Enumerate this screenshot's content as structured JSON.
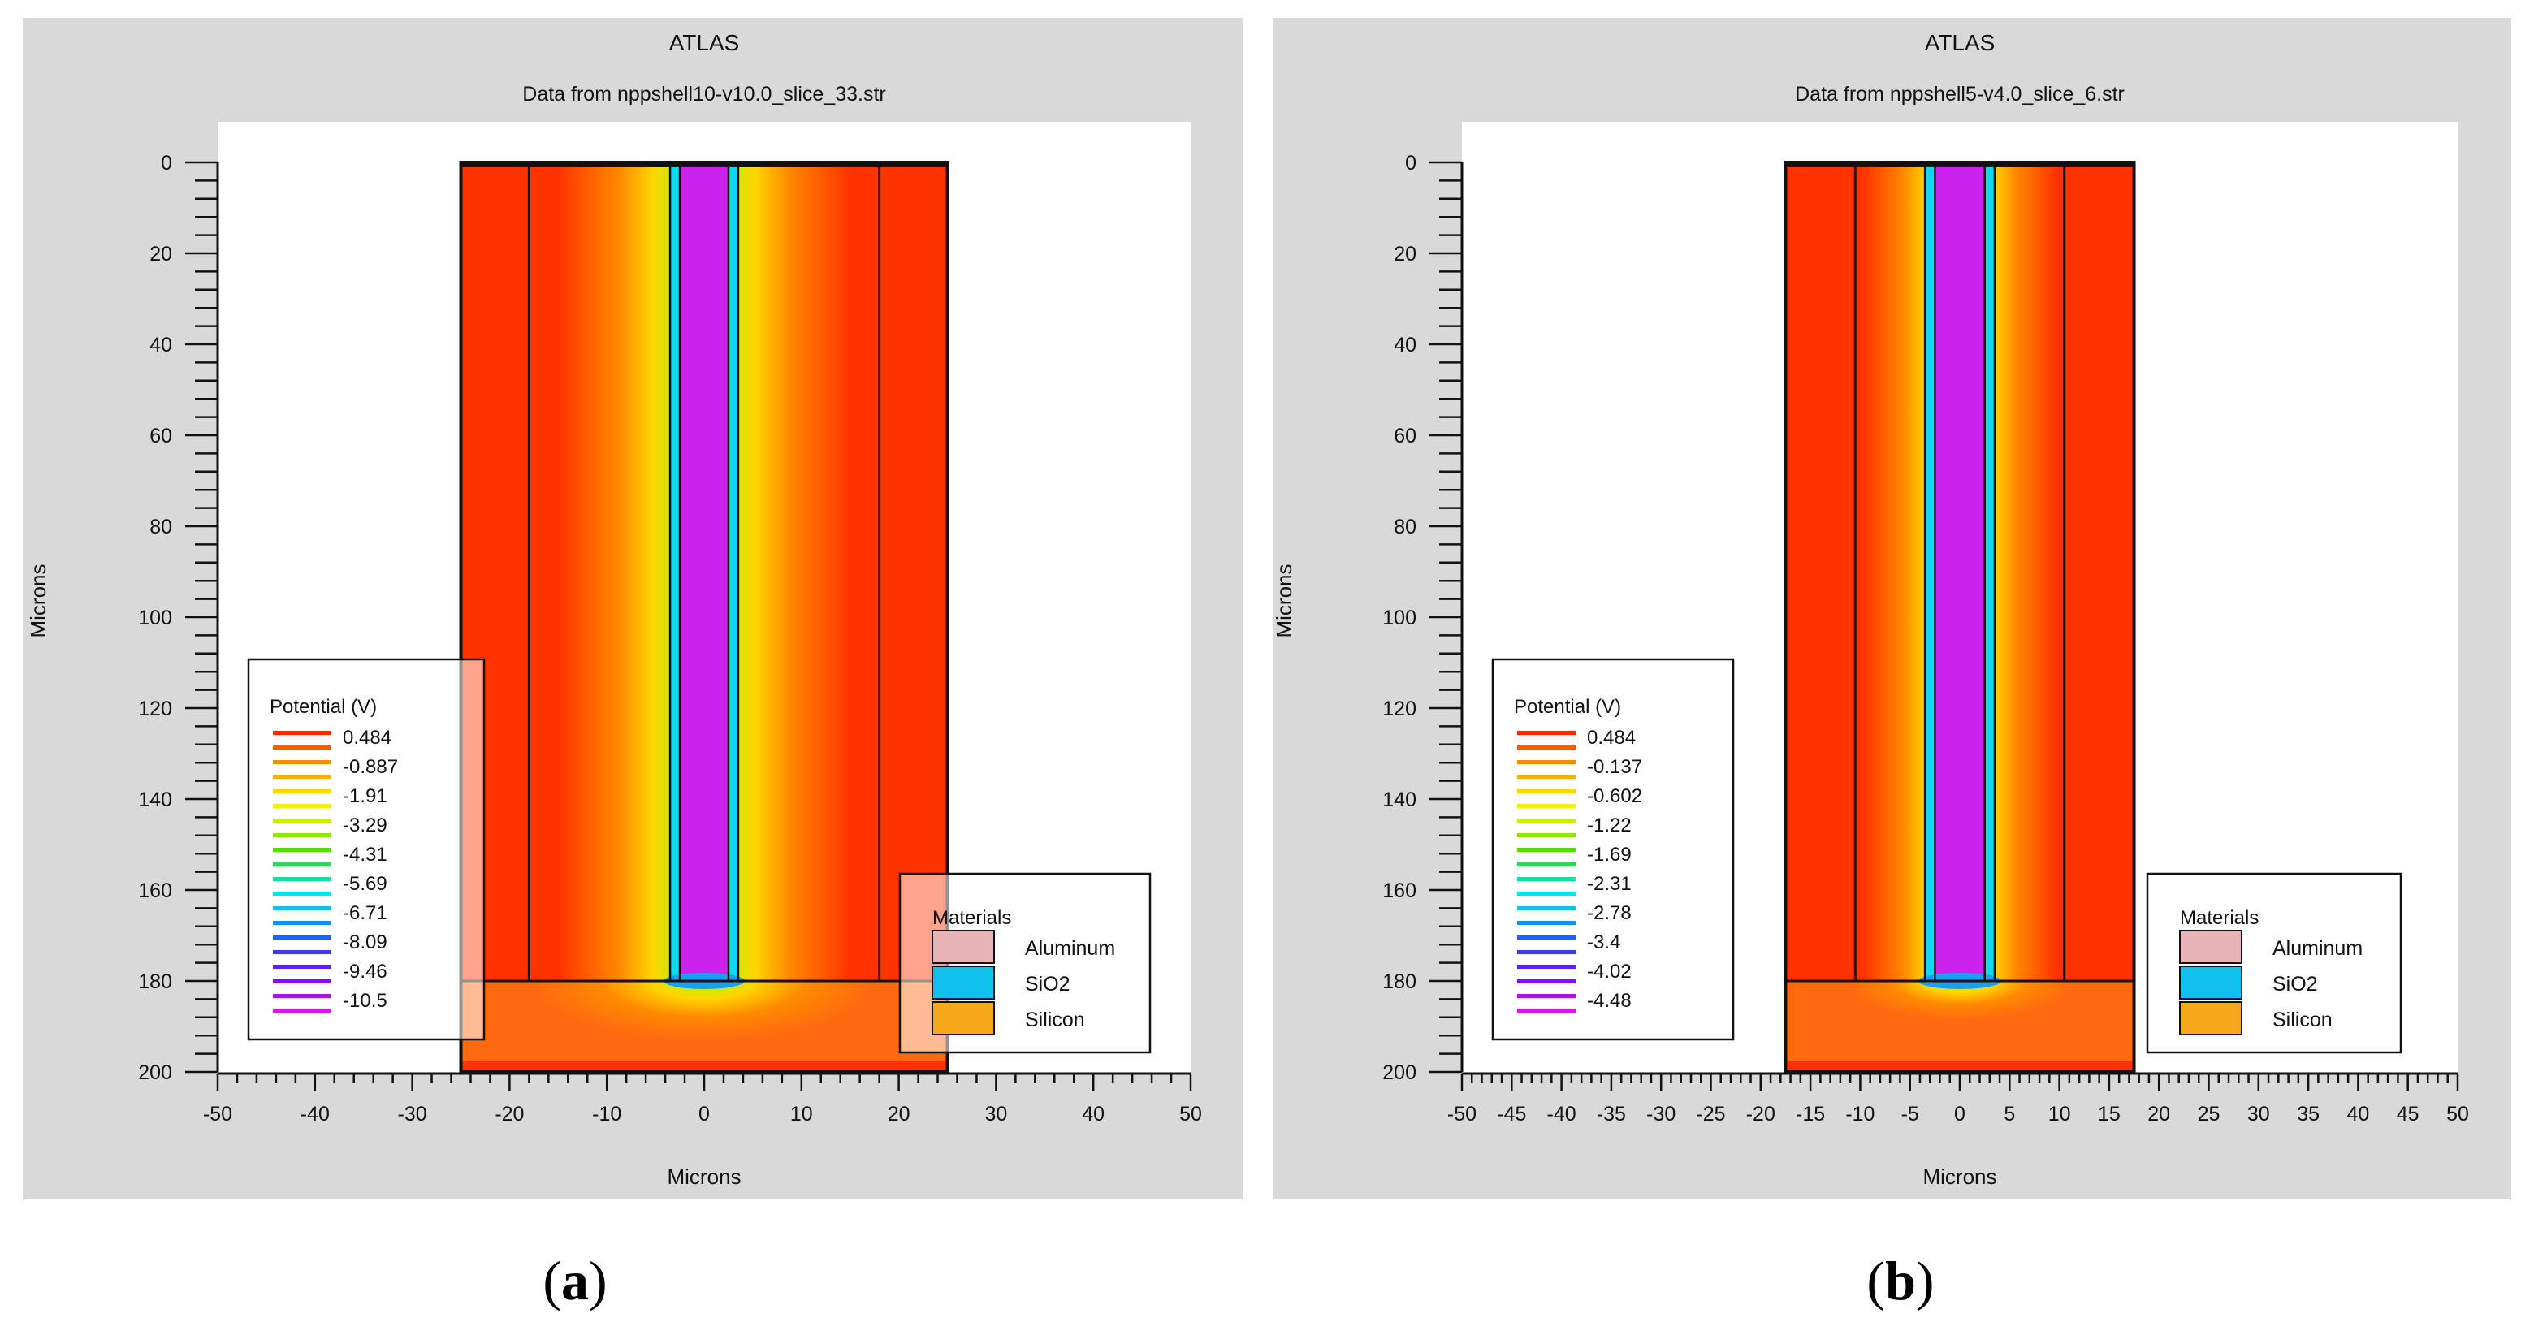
{
  "chart_data": [
    {
      "type": "heatmap",
      "id": "a",
      "title": "ATLAS",
      "subtitle": "Data from nppshell10-v10.0_slice_33.str",
      "xlabel": "Microns",
      "ylabel": "Microns",
      "xlim": [
        -50,
        50
      ],
      "ylim": [
        0,
        200
      ],
      "y_inverted": true,
      "x_ticks": [
        -50,
        -40,
        -30,
        -20,
        -10,
        0,
        10,
        20,
        30,
        40,
        50
      ],
      "x_tick_labels": [
        "-50",
        "-40",
        "-30",
        "-20",
        "-10",
        "0",
        "10",
        "20",
        "30",
        "40",
        "50"
      ],
      "y_ticks": [
        0,
        20,
        40,
        60,
        80,
        100,
        120,
        140,
        160,
        180,
        200
      ],
      "y_tick_labels": [
        "0",
        "20",
        "40",
        "60",
        "80",
        "100",
        "120",
        "140",
        "160",
        "180",
        "200"
      ],
      "device": {
        "x_range": [
          -25,
          25
        ],
        "y_range": [
          0,
          200
        ],
        "pillar_boundaries_x": [
          -18,
          18
        ],
        "oxide_x": [
          -3.5,
          3.5
        ],
        "inner_core_x": [
          -2.5,
          2.5
        ],
        "substrate_top_y": 180,
        "core_top_y": 0,
        "core_bottom_y": 180,
        "field_spread": 14
      },
      "legend_potential": {
        "title": "Potential (V)",
        "labels": [
          "0.484",
          "-0.887",
          "-1.91",
          "-3.29",
          "-4.31",
          "-5.69",
          "-6.71",
          "-8.09",
          "-9.46",
          "-10.5"
        ],
        "max": 0.484,
        "min": -10.5
      },
      "legend_materials": {
        "title": "Materials",
        "items": [
          {
            "label": "Aluminum",
            "color": "#e8b4b8"
          },
          {
            "label": "SiO2",
            "color": "#11bfef"
          },
          {
            "label": "Silicon",
            "color": "#f7a81b"
          }
        ]
      },
      "caption_label": "a"
    },
    {
      "type": "heatmap",
      "id": "b",
      "title": "ATLAS",
      "subtitle": "Data from nppshell5-v4.0_slice_6.str",
      "xlabel": "Microns",
      "ylabel": "Microns",
      "xlim": [
        -50,
        50
      ],
      "ylim": [
        0,
        200
      ],
      "y_inverted": true,
      "x_ticks": [
        -50,
        -45,
        -40,
        -35,
        -30,
        -25,
        -20,
        -15,
        -10,
        -5,
        0,
        5,
        10,
        15,
        20,
        25,
        30,
        35,
        40,
        45,
        50
      ],
      "x_tick_labels": [
        "-50",
        "-45",
        "-40",
        "-35",
        "-30",
        "-25",
        "-20",
        "-15",
        "-10",
        "-5",
        "0",
        "5",
        "10",
        "15",
        "20",
        "25",
        "30",
        "35",
        "40",
        "45",
        "50"
      ],
      "y_ticks": [
        0,
        20,
        40,
        60,
        80,
        100,
        120,
        140,
        160,
        180,
        200
      ],
      "y_tick_labels": [
        "0",
        "20",
        "40",
        "60",
        "80",
        "100",
        "120",
        "140",
        "160",
        "180",
        "200"
      ],
      "device": {
        "x_range": [
          -17.5,
          17.5
        ],
        "y_range": [
          0,
          200
        ],
        "pillar_boundaries_x": [
          -10.5,
          10.5
        ],
        "oxide_x": [
          -3.5,
          3.5
        ],
        "inner_core_x": [
          -2.5,
          2.5
        ],
        "substrate_top_y": 180,
        "core_top_y": 0,
        "core_bottom_y": 180,
        "field_spread": 9
      },
      "legend_potential": {
        "title": "Potential (V)",
        "labels": [
          "0.484",
          "-0.137",
          "-0.602",
          "-1.22",
          "-1.69",
          "-2.31",
          "-2.78",
          "-3.4",
          "-4.02",
          "-4.48"
        ],
        "max": 0.484,
        "min": -4.48
      },
      "legend_materials": {
        "title": "Materials",
        "items": [
          {
            "label": "Aluminum",
            "color": "#e8b4b8"
          },
          {
            "label": "SiO2",
            "color": "#11bfef"
          },
          {
            "label": "Silicon",
            "color": "#f7a81b"
          }
        ]
      },
      "caption_label": "b"
    }
  ]
}
